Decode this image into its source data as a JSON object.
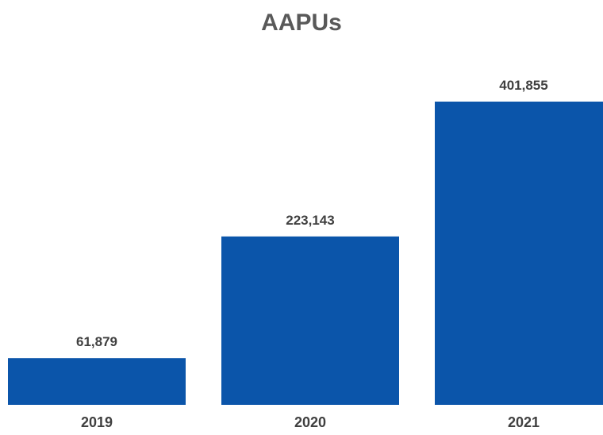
{
  "chart_data": {
    "type": "bar",
    "title": "AAPUs",
    "categories": [
      "2019",
      "2020",
      "2021"
    ],
    "values": [
      61879,
      223143,
      401855
    ],
    "value_labels": [
      "61,879",
      "223,143",
      "401,855"
    ],
    "xlabel": "",
    "ylabel": "",
    "ylim": [
      0,
      401855
    ],
    "grid": false,
    "legend": "none",
    "bar_color": "#0B55AA"
  }
}
